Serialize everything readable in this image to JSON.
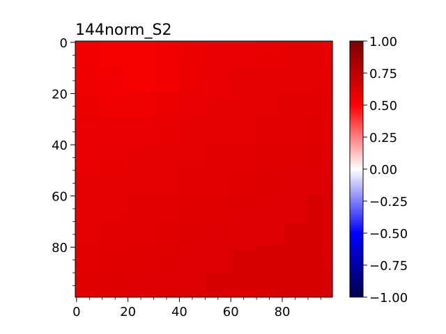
{
  "chart_data": {
    "type": "heatmap",
    "title": "144norm_S2",
    "xlabel": "",
    "ylabel": "",
    "x_range": [
      0,
      99
    ],
    "y_range": [
      0,
      99
    ],
    "y_inverted": true,
    "x_ticks": [
      "0",
      "20",
      "40",
      "60",
      "80"
    ],
    "y_ticks": [
      "0",
      "20",
      "40",
      "60",
      "80"
    ],
    "grid": false,
    "colormap": "seismic",
    "colorbar": {
      "range": [
        -1.0,
        1.0
      ],
      "ticks": [
        "1.00",
        "0.75",
        "0.50",
        "0.25",
        "0.00",
        "−0.25",
        "−0.50",
        "−0.75",
        "−1.00"
      ],
      "tick_values": [
        1.0,
        0.75,
        0.5,
        0.25,
        0.0,
        -0.25,
        -0.5,
        -0.75,
        -1.0
      ]
    },
    "field_estimate": {
      "top_left": 0.56,
      "top_right": 0.6,
      "bottom_left": 0.62,
      "bottom_right": 0.66,
      "note_color_range": [
        0.55,
        0.66
      ]
    }
  },
  "colors": {
    "cmap_top": "#800000",
    "cmap_upper": "#ff0000",
    "cmap_mid": "#ffffff",
    "cmap_lower": "#0000ff",
    "cmap_bottom": "#00004c"
  }
}
